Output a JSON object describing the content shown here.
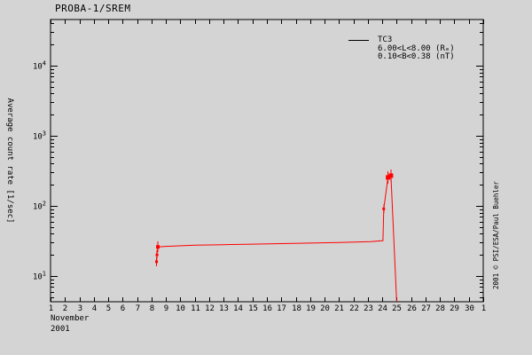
{
  "window": {
    "title": "PROBA-1/SREM"
  },
  "chart_data": {
    "type": "line",
    "title": "PROBA-1/SREM",
    "ylabel": "Average count rate [1/sec]",
    "xlabel_lines": [
      "November",
      "2001"
    ],
    "x_tick_labels": [
      "1",
      "2",
      "3",
      "4",
      "5",
      "6",
      "7",
      "8",
      "9",
      "10",
      "11",
      "12",
      "13",
      "14",
      "15",
      "16",
      "17",
      "18",
      "19",
      "20",
      "21",
      "22",
      "23",
      "24",
      "25",
      "26",
      "27",
      "28",
      "29",
      "30",
      "1"
    ],
    "xlim": [
      1,
      31
    ],
    "y_scale": "log",
    "y_major_tick_exponents": [
      1,
      2,
      3,
      4
    ],
    "ylim_log10": [
      0.633,
      4.658
    ],
    "grid": false,
    "legend": {
      "position": "top-right",
      "series_label": "TC3",
      "condition_lines": [
        "6.00<L<8.00 (Rₑ)",
        "0.10<B<0.38 (nT)"
      ]
    },
    "series": [
      {
        "name": "TC3",
        "color": "#ff0000",
        "points": [
          [
            8.35,
            16
          ],
          [
            8.38,
            20
          ],
          [
            8.44,
            26
          ],
          [
            9,
            26.5
          ],
          [
            11,
            27.5
          ],
          [
            13,
            28
          ],
          [
            15,
            28.5
          ],
          [
            17,
            29
          ],
          [
            19,
            29.5
          ],
          [
            21,
            30
          ],
          [
            23.2,
            31
          ],
          [
            24.05,
            32
          ],
          [
            24.1,
            91
          ],
          [
            24.4,
            255
          ],
          [
            24.6,
            270
          ],
          [
            25.0,
            4.2
          ]
        ],
        "marker_points": [
          [
            8.35,
            16,
            1.5
          ],
          [
            8.38,
            20,
            1.5
          ],
          [
            8.44,
            26,
            2
          ],
          [
            24.1,
            91,
            1.5
          ],
          [
            24.4,
            255,
            2.5
          ],
          [
            24.6,
            270,
            2.5
          ]
        ]
      }
    ],
    "credit": "2001 © PSI/ESA/Paul Buehler"
  },
  "colors": {
    "background": "#d4d4d4",
    "axis": "#000000",
    "series_tc3": "#ff0000"
  }
}
